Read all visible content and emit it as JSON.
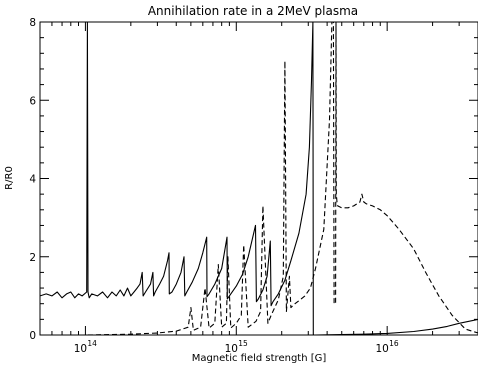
{
  "chart_data": {
    "type": "line",
    "title": "Annihilation rate in a 2MeV plasma",
    "xlabel": "Magnetic field strength [G]",
    "ylabel": "R/R0",
    "x_scale": "log",
    "xlim": [
      50000000000000.0,
      4e+16
    ],
    "ylim": [
      0,
      8
    ],
    "x_ticks": [
      {
        "value": 100000000000000.0,
        "base": "10",
        "exp": "14"
      },
      {
        "value": 1000000000000000.0,
        "base": "10",
        "exp": "15"
      },
      {
        "value": 1e+16,
        "base": "10",
        "exp": "16"
      }
    ],
    "y_ticks": [
      "0",
      "2",
      "4",
      "6",
      "8"
    ],
    "grid": false,
    "legend": "none",
    "series": [
      {
        "style": "solid",
        "x": [
          50000000000000.0,
          55000000000000.0,
          60000000000000.0,
          65000000000000.0,
          70000000000000.0,
          75000000000000.0,
          80000000000000.0,
          85000000000000.0,
          90000000000000.0,
          95000000000000.0,
          102000000000000.0,
          103000000000000.0,
          104000000000000.0,
          106000000000000.0,
          110000000000000.0,
          120000000000000.0,
          130000000000000.0,
          140000000000000.0,
          150000000000000.0,
          160000000000000.0,
          170000000000000.0,
          180000000000000.0,
          190000000000000.0,
          200000000000000.0,
          210000000000000.0,
          220000000000000.0,
          230000000000000.0,
          238000000000000.0,
          241000000000000.0,
          250000000000000.0,
          270000000000000.0,
          280000000000000.0,
          283000000000000.0,
          290000000000000.0,
          310000000000000.0,
          330000000000000.0,
          350000000000000.0,
          358000000000000.0,
          360000000000000.0,
          375000000000000.0,
          400000000000000.0,
          430000000000000.0,
          450000000000000.0,
          456000000000000.0,
          470000000000000.0,
          510000000000000.0,
          560000000000000.0,
          600000000000000.0,
          637000000000000.0,
          640000000000000.0,
          660000000000000.0,
          720000000000000.0,
          800000000000000.0,
          868000000000000.0,
          872000000000000.0,
          900000000000000.0,
          1000000000000000.0,
          1100000000000000.0,
          1200000000000000.0,
          1340000000000000.0,
          1360000000000000.0,
          1400000000000000.0,
          1500000000000000.0,
          1600000000000000.0,
          1680000000000000.0,
          1700000000000000.0,
          1750000000000000.0,
          1900000000000000.0,
          2100000000000000.0,
          2300000000000000.0,
          2600000000000000.0,
          2900000000000000.0,
          3050000000000000.0,
          3150000000000000.0,
          3220000000000000.0,
          3240000000000000.0,
          3260000000000000.0,
          3300000000000000.0,
          4000000000000000.0,
          5000000000000000.0,
          7000000000000000.0,
          1e+16,
          1.5e+16,
          2e+16,
          2.5e+16,
          3e+16,
          4e+16
        ],
        "y": [
          1.0,
          1.05,
          1.0,
          1.1,
          0.95,
          1.05,
          1.1,
          0.95,
          1.05,
          1.0,
          1.1,
          8.0,
          1.1,
          0.95,
          1.05,
          1.0,
          1.1,
          0.95,
          1.1,
          1.0,
          1.15,
          1.0,
          1.2,
          1.0,
          1.1,
          1.2,
          1.3,
          1.6,
          1.0,
          1.1,
          1.3,
          1.6,
          1.0,
          1.1,
          1.3,
          1.5,
          1.9,
          2.1,
          1.05,
          1.1,
          1.3,
          1.6,
          2.0,
          1.0,
          1.1,
          1.35,
          1.7,
          2.1,
          2.5,
          0.98,
          1.05,
          1.3,
          1.7,
          2.5,
          0.92,
          1.0,
          1.25,
          1.55,
          2.0,
          2.8,
          0.85,
          0.92,
          1.15,
          1.5,
          2.4,
          0.75,
          0.85,
          1.05,
          1.4,
          1.9,
          2.6,
          3.6,
          4.8,
          6.5,
          8.0,
          0.02,
          0.0,
          0.0,
          0.005,
          0.01,
          0.02,
          0.04,
          0.09,
          0.15,
          0.22,
          0.3,
          0.4
        ]
      },
      {
        "style": "dashed",
        "x": [
          50000000000000.0,
          100000000000000.0,
          200000000000000.0,
          300000000000000.0,
          400000000000000.0,
          480000000000000.0,
          500000000000000.0,
          520000000000000.0,
          580000000000000.0,
          620000000000000.0,
          660000000000000.0,
          720000000000000.0,
          760000000000000.0,
          800000000000000.0,
          860000000000000.0,
          880000000000000.0,
          920000000000000.0,
          1000000000000000.0,
          1080000000000000.0,
          1120000000000000.0,
          1200000000000000.0,
          1350000000000000.0,
          1450000000000000.0,
          1500000000000000.0,
          1620000000000000.0,
          1700000000000000.0,
          1900000000000000.0,
          2050000000000000.0,
          2100000000000000.0,
          2150000000000000.0,
          2250000000000000.0,
          2300000000000000.0,
          2450000000000000.0,
          2650000000000000.0,
          2850000000000000.0,
          3100000000000000.0,
          3350000000000000.0,
          3800000000000000.0,
          4150000000000000.0,
          4300000000000000.0,
          4400000000000000.0,
          4450000000000000.0,
          4550000000000000.0,
          4580000000000000.0,
          4600000000000000.0,
          4650000000000000.0,
          4700000000000000.0,
          5000000000000000.0,
          5500000000000000.0,
          6000000000000000.0,
          6600000000000000.0,
          6800000000000000.0,
          7000000000000000.0,
          7300000000000000.0,
          8000000000000000.0,
          9000000000000000.0,
          1e+16,
          1.2e+16,
          1.5e+16,
          1.8e+16,
          2.2e+16,
          2.7e+16,
          3.3e+16,
          4e+16
        ],
        "y": [
          0.0,
          0.0,
          0.02,
          0.05,
          0.1,
          0.2,
          0.7,
          0.12,
          0.2,
          1.2,
          0.18,
          0.3,
          1.8,
          0.2,
          0.3,
          2.0,
          0.18,
          0.3,
          0.5,
          2.3,
          0.2,
          0.35,
          0.6,
          3.3,
          0.3,
          0.5,
          0.9,
          1.5,
          7.0,
          0.6,
          1.5,
          0.7,
          0.8,
          0.9,
          1.0,
          1.2,
          1.7,
          2.7,
          5.5,
          8.0,
          8.0,
          0.8,
          0.8,
          8.0,
          3.6,
          3.4,
          3.3,
          3.25,
          3.25,
          3.3,
          3.4,
          3.6,
          3.4,
          3.35,
          3.3,
          3.2,
          3.05,
          2.7,
          2.2,
          1.6,
          1.0,
          0.5,
          0.15,
          0.05
        ]
      }
    ]
  }
}
